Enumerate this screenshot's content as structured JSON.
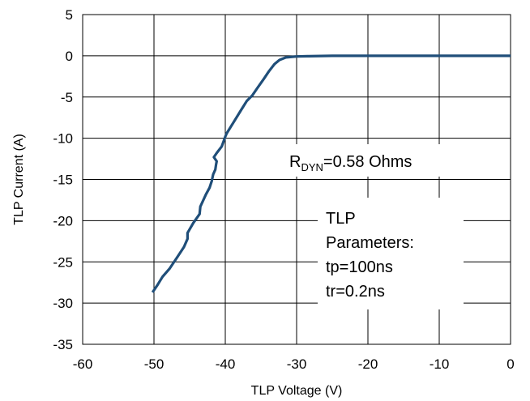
{
  "chart_data": {
    "type": "line",
    "title": "",
    "xlabel": "TLP Voltage (V)",
    "ylabel": "TLP Current (A)",
    "xlim": [
      -60,
      0
    ],
    "ylim": [
      -35,
      5
    ],
    "xticks": [
      -60,
      -50,
      -40,
      -30,
      -20,
      -10,
      0
    ],
    "yticks": [
      5,
      0,
      -5,
      -10,
      -15,
      -20,
      -25,
      -30,
      -35
    ],
    "grid": true,
    "legend": "none",
    "series": [
      {
        "color": "#1f4e79",
        "x": [
          -50.2,
          -49.5,
          -48.8,
          -47.8,
          -46.8,
          -45.8,
          -45.3,
          -45.3,
          -44.5,
          -43.6,
          -43.5,
          -42.7,
          -42.2,
          -41.9,
          -41.7,
          -41.4,
          -41.3,
          -41.2,
          -41.6,
          -41.2,
          -40.5,
          -40.2,
          -40.0,
          -39.8,
          -38.8,
          -37.8,
          -37.0,
          -36.2,
          -35.5,
          -34.6,
          -33.9,
          -33.1,
          -32.4,
          -31.5,
          -30.0,
          -28.5,
          -25.0,
          -20.0,
          -15.0,
          -10.0,
          -5.0,
          0.0
        ],
        "y": [
          -28.7,
          -27.8,
          -26.8,
          -25.8,
          -24.5,
          -23.2,
          -22.2,
          -21.5,
          -20.3,
          -19.2,
          -18.3,
          -16.8,
          -16.0,
          -15.2,
          -14.4,
          -13.8,
          -13.2,
          -12.8,
          -12.3,
          -11.8,
          -11.0,
          -10.3,
          -9.8,
          -9.4,
          -8.0,
          -6.6,
          -5.5,
          -4.8,
          -3.9,
          -2.8,
          -1.9,
          -1.0,
          -0.5,
          -0.2,
          -0.08,
          -0.05,
          0,
          0,
          0,
          0,
          0,
          0
        ]
      }
    ],
    "annotations": {
      "rdyn_main": "R",
      "rdyn_sub": "DYN",
      "rdyn_rest": "=0.58  Ohms",
      "tlp_lines": [
        "TLP",
        "Parameters:",
        "tp=100ns",
        "tr=0.2ns"
      ]
    }
  }
}
